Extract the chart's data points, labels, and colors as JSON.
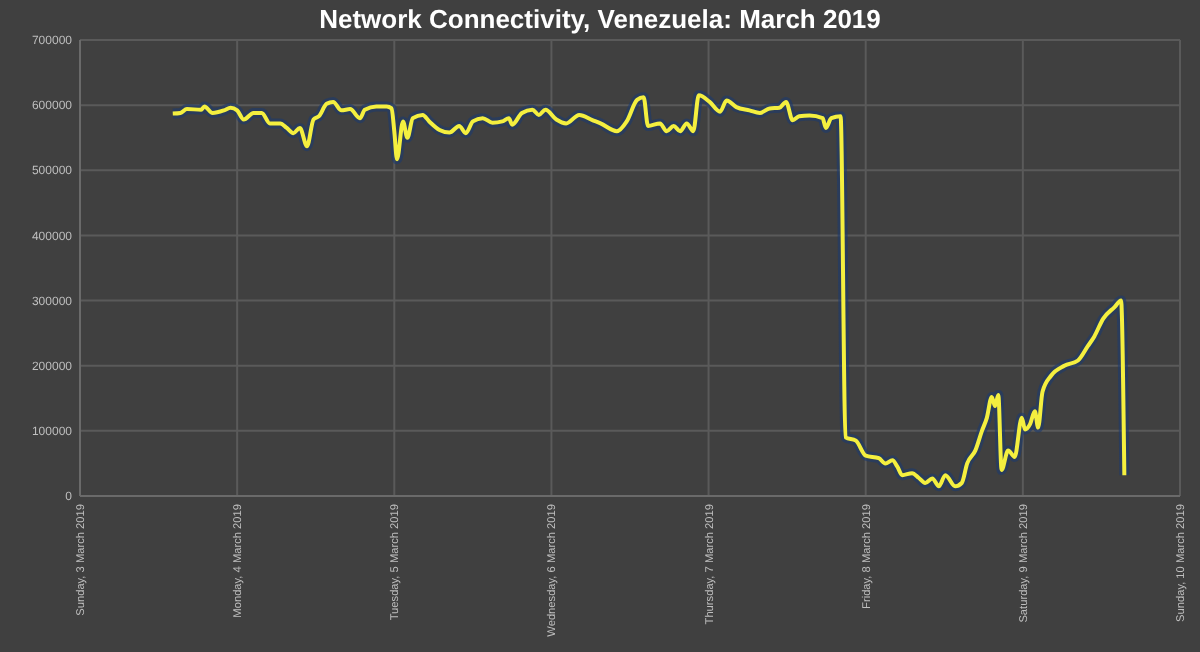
{
  "chart_data": {
    "type": "line",
    "title": "Network Connectivity, Venezuela: March 2019",
    "xlim": [
      "2019-03-03",
      "2019-03-10"
    ],
    "xticks": [
      {
        "value": "2019-03-03",
        "label": "Sunday, 3 March 2019"
      },
      {
        "value": "2019-03-04",
        "label": "Monday, 4 March 2019"
      },
      {
        "value": "2019-03-05",
        "label": "Tuesday, 5 March 2019"
      },
      {
        "value": "2019-03-06",
        "label": "Wednesday, 6 March 2019"
      },
      {
        "value": "2019-03-07",
        "label": "Thursday, 7 March 2019"
      },
      {
        "value": "2019-03-08",
        "label": "Friday, 8 March 2019"
      },
      {
        "value": "2019-03-09",
        "label": "Saturday, 9 March 2019"
      },
      {
        "value": "2019-03-10",
        "label": "Sunday, 10 March 2019"
      }
    ],
    "ylim": [
      0,
      700000
    ],
    "yticks": [
      0,
      100000,
      200000,
      300000,
      400000,
      500000,
      600000,
      700000
    ],
    "grid": true,
    "x": [
      "2019-03-03T14:10",
      "2019-03-03T15:20",
      "2019-03-03T16:20",
      "2019-03-03T18:30",
      "2019-03-03T19:00",
      "2019-03-03T20:15",
      "2019-03-03T22:00",
      "2019-03-03T23:00",
      "2019-03-04T00:00",
      "2019-03-04T01:00",
      "2019-03-04T02:30",
      "2019-03-04T03:45",
      "2019-03-04T05:00",
      "2019-03-04T06:35",
      "2019-03-04T07:35",
      "2019-03-04T08:35",
      "2019-03-04T09:35",
      "2019-03-04T10:40",
      "2019-03-04T11:40",
      "2019-03-04T12:30",
      "2019-03-04T13:40",
      "2019-03-04T14:40",
      "2019-03-04T15:55",
      "2019-03-04T17:15",
      "2019-03-04T18:45",
      "2019-03-04T19:30",
      "2019-03-04T21:15",
      "2019-03-04T22:50",
      "2019-03-04T23:35",
      "2019-03-05T00:00",
      "2019-03-05T00:25",
      "2019-03-05T01:20",
      "2019-03-05T02:00",
      "2019-03-05T02:50",
      "2019-03-05T04:20",
      "2019-03-05T05:20",
      "2019-03-05T06:55",
      "2019-03-05T08:25",
      "2019-03-05T09:55",
      "2019-03-05T10:55",
      "2019-03-05T12:00",
      "2019-03-05T13:30",
      "2019-03-05T15:00",
      "2019-03-05T16:30",
      "2019-03-05T17:30",
      "2019-03-05T18:00",
      "2019-03-05T19:30",
      "2019-03-05T21:05",
      "2019-03-05T22:05",
      "2019-03-05T23:05",
      "2019-03-06T00:45",
      "2019-03-06T02:15",
      "2019-03-06T04:15",
      "2019-03-06T06:15",
      "2019-03-06T07:30",
      "2019-03-06T10:00",
      "2019-03-06T11:30",
      "2019-03-06T13:05",
      "2019-03-06T14:05",
      "2019-03-06T14:45",
      "2019-03-06T16:35",
      "2019-03-06T17:35",
      "2019-03-06T18:40",
      "2019-03-06T19:40",
      "2019-03-06T20:40",
      "2019-03-06T21:40",
      "2019-03-06T22:30",
      "2019-03-07T00:10",
      "2019-03-07T01:45",
      "2019-03-07T02:45",
      "2019-03-07T04:15",
      "2019-03-07T06:15",
      "2019-03-07T07:50",
      "2019-03-07T09:20",
      "2019-03-07T10:50",
      "2019-03-07T11:50",
      "2019-03-07T12:50",
      "2019-03-07T13:50",
      "2019-03-07T15:25",
      "2019-03-07T17:25",
      "2019-03-07T17:55",
      "2019-03-07T18:45",
      "2019-03-07T20:10",
      "2019-03-07T20:55",
      "2019-03-07T22:30",
      "2019-03-08T00:00",
      "2019-03-08T02:00",
      "2019-03-08T03:00",
      "2019-03-08T04:05",
      "2019-03-08T04:50",
      "2019-03-08T05:35",
      "2019-03-08T07:05",
      "2019-03-08T08:05",
      "2019-03-08T09:05",
      "2019-03-08T10:10",
      "2019-03-08T11:10",
      "2019-03-08T12:10",
      "2019-03-08T13:40",
      "2019-03-08T14:40",
      "2019-03-08T15:30",
      "2019-03-08T16:45",
      "2019-03-08T17:45",
      "2019-03-08T18:30",
      "2019-03-08T19:15",
      "2019-03-08T19:45",
      "2019-03-08T20:15",
      "2019-03-08T20:45",
      "2019-03-08T21:45",
      "2019-03-08T22:45",
      "2019-03-08T23:50",
      "2019-03-09T00:20",
      "2019-03-09T01:05",
      "2019-03-09T01:50",
      "2019-03-09T02:20",
      "2019-03-09T03:00",
      "2019-03-09T04:20",
      "2019-03-09T06:20",
      "2019-03-09T08:25",
      "2019-03-09T09:55",
      "2019-03-09T10:55",
      "2019-03-09T12:15",
      "2019-03-09T14:00",
      "2019-03-09T15:00",
      "2019-03-09T15:30"
    ],
    "series": [
      {
        "color": "#f4ef3f",
        "values": [
          587000,
          588000,
          594000,
          593000,
          598000,
          588000,
          592000,
          596000,
          592000,
          578000,
          588000,
          588000,
          572000,
          572000,
          565000,
          557000,
          565000,
          537000,
          578000,
          583000,
          602000,
          605000,
          592000,
          594000,
          580000,
          593000,
          598000,
          598000,
          595000,
          560000,
          517000,
          575000,
          550000,
          580000,
          585000,
          575000,
          562000,
          558000,
          568000,
          557000,
          575000,
          580000,
          573000,
          575000,
          580000,
          570000,
          588000,
          593000,
          585000,
          593000,
          578000,
          572000,
          585000,
          577000,
          572000,
          560000,
          575000,
          608000,
          612000,
          568000,
          572000,
          560000,
          568000,
          560000,
          572000,
          560000,
          615000,
          605000,
          590000,
          607000,
          597000,
          592000,
          588000,
          595000,
          596000,
          605000,
          577000,
          583000,
          584000,
          580000,
          565000,
          580000,
          583000,
          90000,
          85000,
          62000,
          58000,
          50000,
          55000,
          45000,
          32000,
          35000,
          28000,
          20000,
          27000,
          15000,
          32000,
          15000,
          20000,
          50000,
          70000,
          100000,
          120000,
          152000,
          138000,
          155000,
          40000,
          70000,
          60000,
          120000,
          102000,
          110000,
          130000,
          105000,
          160000,
          185000,
          200000,
          208000,
          230000,
          245000,
          272000,
          290000,
          300000,
          32000
        ]
      }
    ]
  }
}
